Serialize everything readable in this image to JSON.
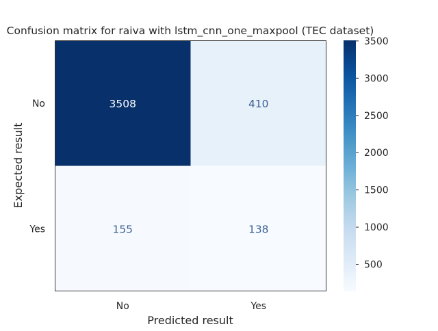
{
  "chart_data": {
    "type": "heatmap",
    "title": "Confusion matrix for raiva with lstm_cnn_one_maxpool (TEC dataset)",
    "xlabel": "Predicted result",
    "ylabel": "Expected result",
    "x_categories": [
      "No",
      "Yes"
    ],
    "y_categories": [
      "No",
      "Yes"
    ],
    "values": [
      [
        3508,
        410
      ],
      [
        155,
        138
      ]
    ],
    "colormap": "Blues",
    "colorbar": {
      "range": [
        138,
        3508
      ],
      "ticks": [
        500,
        1000,
        1500,
        2000,
        2500,
        3000,
        3500
      ],
      "tick_labels": [
        "500",
        "1000",
        "1500",
        "2000",
        "2500",
        "3000",
        "3500"
      ]
    },
    "grid": false
  }
}
